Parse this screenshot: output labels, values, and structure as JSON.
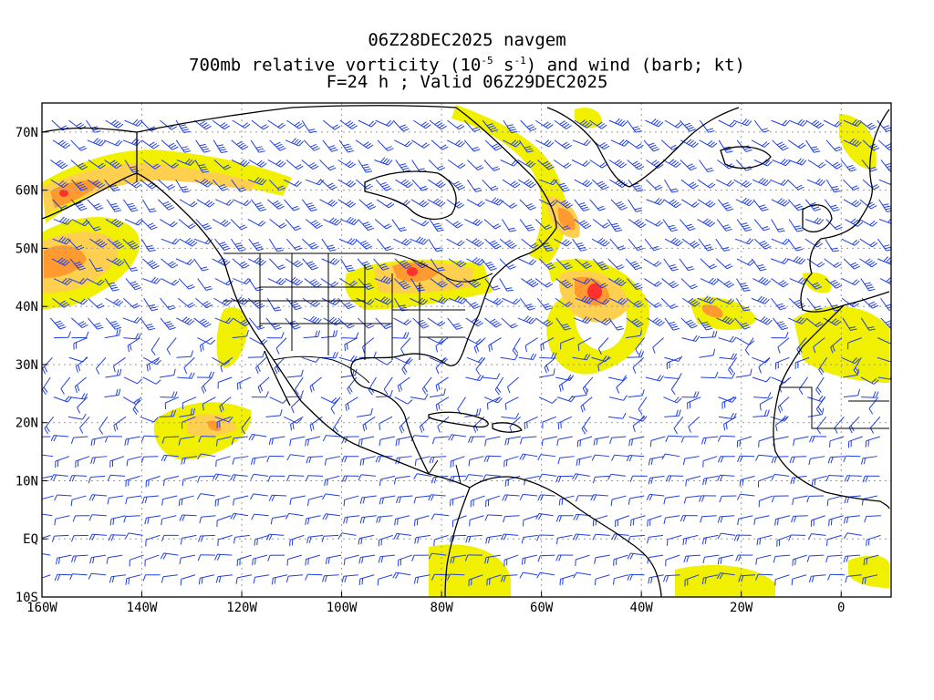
{
  "title": {
    "line1": "06Z28DEC2025 navgem",
    "line2_pre": "700mb relative vorticity (10",
    "line2_exp1": "-5",
    "line2_mid": " s",
    "line2_exp2": "-1",
    "line2_post": ") and wind (barb; kt)",
    "line3": "F=24 h ; Valid 06Z29DEC2025"
  },
  "map": {
    "lon_range": [
      -160,
      10
    ],
    "lat_range": [
      -10,
      75
    ],
    "x_ticks": [
      {
        "value": -160,
        "label": "160W"
      },
      {
        "value": -140,
        "label": "140W"
      },
      {
        "value": -120,
        "label": "120W"
      },
      {
        "value": -100,
        "label": "100W"
      },
      {
        "value": -80,
        "label": "80W"
      },
      {
        "value": -60,
        "label": "60W"
      },
      {
        "value": -40,
        "label": "40W"
      },
      {
        "value": -20,
        "label": "20W"
      },
      {
        "value": 0,
        "label": "0"
      }
    ],
    "y_ticks": [
      {
        "value": 70,
        "label": "70N"
      },
      {
        "value": 60,
        "label": "60N"
      },
      {
        "value": 50,
        "label": "50N"
      },
      {
        "value": 40,
        "label": "40N"
      },
      {
        "value": 30,
        "label": "30N"
      },
      {
        "value": 20,
        "label": "20N"
      },
      {
        "value": 10,
        "label": "10N"
      },
      {
        "value": 0,
        "label": "EQ"
      },
      {
        "value": -10,
        "label": "10S"
      }
    ],
    "colors": {
      "shade_low": "#f0f000",
      "shade_mid": "#ffd050",
      "shade_high": "#ff9a30",
      "shade_max": "#ff3030",
      "wind_barb": "#2040e0",
      "coastline": "#000000",
      "grid": "#9a9a9a"
    }
  }
}
